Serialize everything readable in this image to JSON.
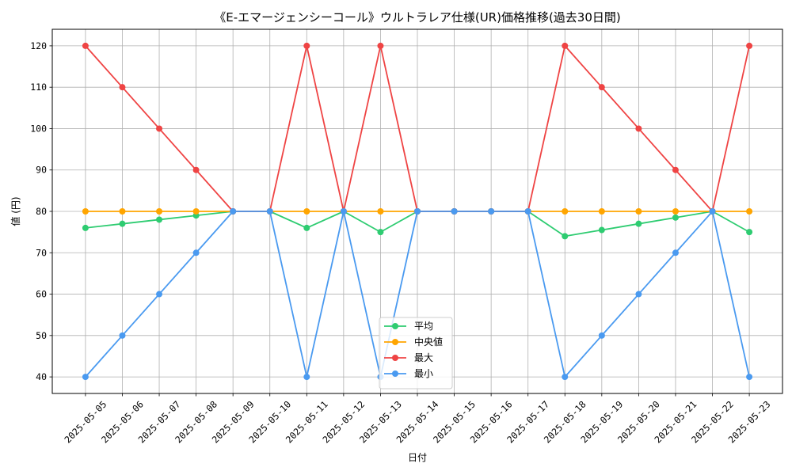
{
  "chart_data": {
    "type": "line",
    "title": "《E-エマージェンシーコール》ウルトラレア仕様(UR)価格推移(過去30日間)",
    "xlabel": "日付",
    "ylabel": "値 (円)",
    "categories": [
      "2025-05-05",
      "2025-05-06",
      "2025-05-07",
      "2025-05-08",
      "2025-05-09",
      "2025-05-10",
      "2025-05-11",
      "2025-05-12",
      "2025-05-13",
      "2025-05-14",
      "2025-05-15",
      "2025-05-16",
      "2025-05-17",
      "2025-05-18",
      "2025-05-19",
      "2025-05-20",
      "2025-05-21",
      "2025-05-22",
      "2025-05-23"
    ],
    "ylim": [
      36,
      124
    ],
    "yticks": [
      40,
      50,
      60,
      70,
      80,
      90,
      100,
      110,
      120
    ],
    "grid": true,
    "series": [
      {
        "name": "平均",
        "color": "#2ecc71",
        "values": [
          76,
          77,
          78,
          79,
          80,
          80,
          76,
          80,
          75,
          80,
          80,
          80,
          80,
          74,
          75.5,
          77,
          78.5,
          80,
          75
        ]
      },
      {
        "name": "中央値",
        "color": "#ffa500",
        "values": [
          80,
          80,
          80,
          80,
          80,
          80,
          80,
          80,
          80,
          80,
          80,
          80,
          80,
          80,
          80,
          80,
          80,
          80,
          80
        ]
      },
      {
        "name": "最大",
        "color": "#ef4444",
        "values": [
          120,
          110,
          100,
          90,
          80,
          80,
          120,
          80,
          120,
          80,
          80,
          80,
          80,
          120,
          110,
          100,
          90,
          80,
          120
        ]
      },
      {
        "name": "最小",
        "color": "#4a9af0",
        "values": [
          40,
          50,
          60,
          70,
          80,
          80,
          40,
          80,
          40,
          80,
          80,
          80,
          80,
          40,
          50,
          60,
          70,
          80,
          40
        ]
      }
    ]
  }
}
